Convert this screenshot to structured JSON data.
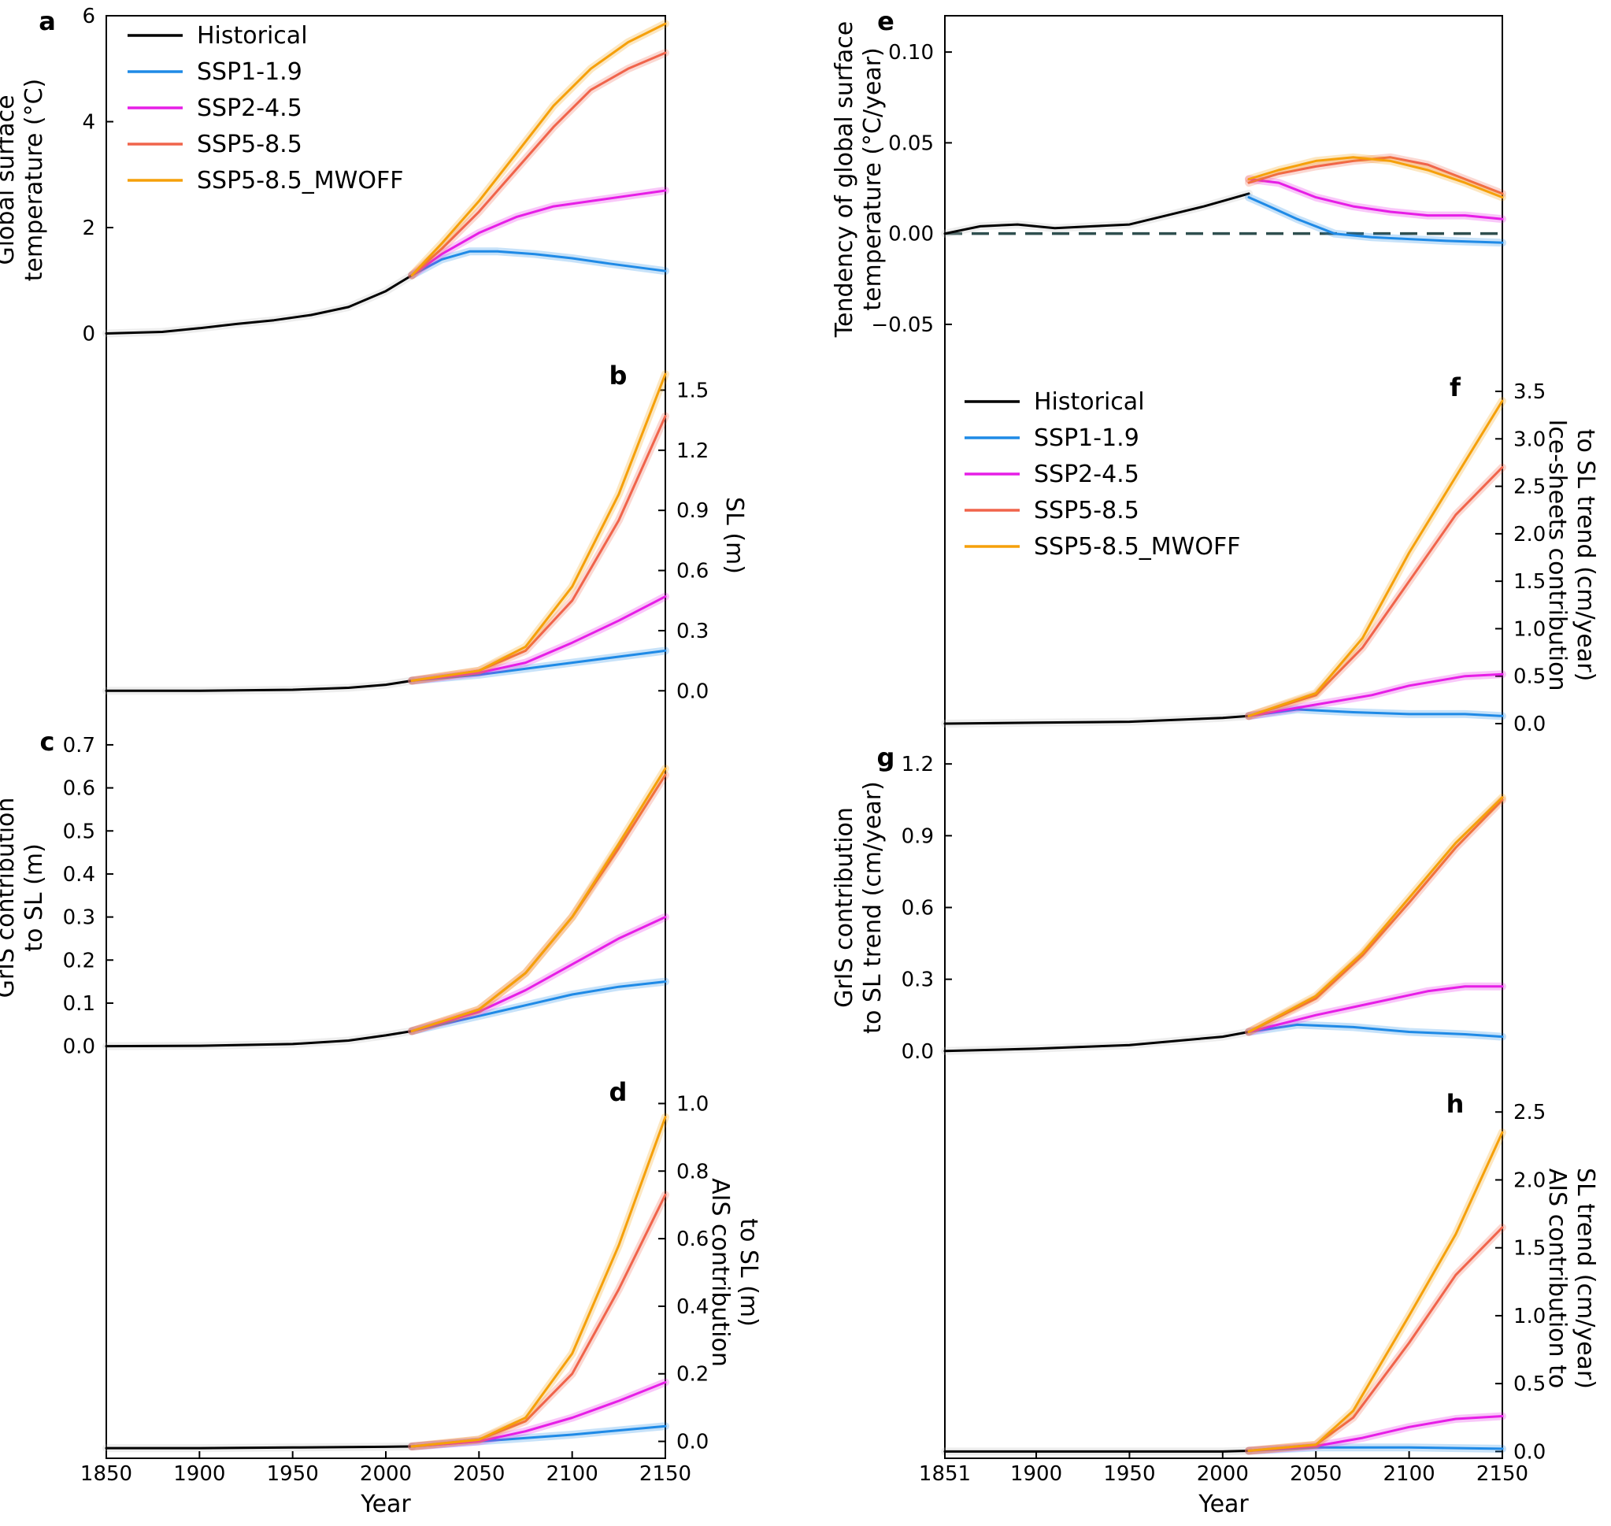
{
  "legend": [
    {
      "label": "Historical",
      "color": "#000000"
    },
    {
      "label": "SSP1-1.9",
      "color": "#1f8ae6"
    },
    {
      "label": "SSP2-4.5",
      "color": "#e61ee6"
    },
    {
      "label": "SSP5-8.5",
      "color": "#f0644b"
    },
    {
      "label": "SSP5-8.5_MWOFF",
      "color": "#f5a00a"
    }
  ],
  "colors": {
    "zero_line": "#2f4f4f",
    "spread": "#bbbbbb"
  },
  "x_axis": {
    "left": {
      "label": "Year",
      "ticks": [
        "1850",
        "1900",
        "1950",
        "2000",
        "2050",
        "2100",
        "2150"
      ],
      "range": [
        1850,
        2150
      ]
    },
    "right": {
      "label": "Year",
      "ticks": [
        "1851",
        "1900",
        "1950",
        "2000",
        "2050",
        "2100",
        "2150"
      ],
      "range": [
        1851,
        2150
      ]
    }
  },
  "chart_data": [
    {
      "id": "a",
      "panel_label": "a",
      "type": "line",
      "side": "left",
      "axis": "left",
      "ylabel": [
        "Global surface",
        "temperature (°C)"
      ],
      "yticks": [
        "0",
        "2",
        "4",
        "6"
      ],
      "ylim": [
        -0.2,
        6.0
      ],
      "hist_end": 2014,
      "series": [
        {
          "name": "Historical",
          "x": [
            1850,
            1880,
            1900,
            1920,
            1940,
            1960,
            1980,
            2000,
            2014
          ],
          "values": [
            0.0,
            0.03,
            0.1,
            0.18,
            0.25,
            0.35,
            0.5,
            0.8,
            1.1
          ]
        },
        {
          "name": "SSP1-1.9",
          "x": [
            2014,
            2030,
            2045,
            2060,
            2080,
            2100,
            2120,
            2150
          ],
          "values": [
            1.1,
            1.4,
            1.55,
            1.55,
            1.5,
            1.42,
            1.32,
            1.18
          ]
        },
        {
          "name": "SSP2-4.5",
          "x": [
            2014,
            2030,
            2050,
            2070,
            2090,
            2110,
            2130,
            2150
          ],
          "values": [
            1.1,
            1.5,
            1.9,
            2.2,
            2.4,
            2.5,
            2.6,
            2.7
          ]
        },
        {
          "name": "SSP5-8.5",
          "x": [
            2014,
            2030,
            2050,
            2070,
            2090,
            2110,
            2130,
            2150
          ],
          "values": [
            1.1,
            1.6,
            2.3,
            3.1,
            3.9,
            4.6,
            5.0,
            5.3
          ]
        },
        {
          "name": "SSP5-8.5_MWOFF",
          "x": [
            2014,
            2030,
            2050,
            2070,
            2090,
            2110,
            2130,
            2150
          ],
          "values": [
            1.1,
            1.7,
            2.5,
            3.4,
            4.3,
            5.0,
            5.5,
            5.85
          ]
        }
      ]
    },
    {
      "id": "b",
      "panel_label": "b",
      "type": "line",
      "side": "right",
      "axis": "left",
      "ylabel": [
        "SL (m)"
      ],
      "yticks": [
        "0.0",
        "0.3",
        "0.6",
        "0.9",
        "1.2",
        "1.5"
      ],
      "ylim": [
        -0.05,
        1.6
      ],
      "hist_end": 2014,
      "series": [
        {
          "name": "Historical",
          "x": [
            1850,
            1900,
            1950,
            1980,
            2000,
            2014
          ],
          "values": [
            0.0,
            0.0,
            0.005,
            0.015,
            0.03,
            0.05
          ]
        },
        {
          "name": "SSP1-1.9",
          "x": [
            2014,
            2050,
            2075,
            2100,
            2125,
            2150
          ],
          "values": [
            0.05,
            0.08,
            0.11,
            0.14,
            0.17,
            0.2
          ]
        },
        {
          "name": "SSP2-4.5",
          "x": [
            2014,
            2050,
            2075,
            2100,
            2125,
            2150
          ],
          "values": [
            0.05,
            0.09,
            0.14,
            0.24,
            0.35,
            0.47
          ]
        },
        {
          "name": "SSP5-8.5",
          "x": [
            2014,
            2050,
            2075,
            2100,
            2125,
            2150
          ],
          "values": [
            0.05,
            0.1,
            0.2,
            0.45,
            0.85,
            1.37
          ]
        },
        {
          "name": "SSP5-8.5_MWOFF",
          "x": [
            2014,
            2050,
            2075,
            2100,
            2125,
            2150
          ],
          "values": [
            0.05,
            0.1,
            0.22,
            0.52,
            0.98,
            1.58
          ]
        }
      ]
    },
    {
      "id": "c",
      "panel_label": "c",
      "type": "line",
      "side": "left",
      "axis": "left",
      "ylabel": [
        "GrIS contribution",
        "to SL (m)"
      ],
      "yticks": [
        "0.0",
        "0.1",
        "0.2",
        "0.3",
        "0.4",
        "0.5",
        "0.6",
        "0.7"
      ],
      "ylim": [
        -0.03,
        0.72
      ],
      "hist_end": 2014,
      "series": [
        {
          "name": "Historical",
          "x": [
            1850,
            1900,
            1950,
            1980,
            2000,
            2014
          ],
          "values": [
            0.0,
            0.001,
            0.005,
            0.013,
            0.025,
            0.035
          ]
        },
        {
          "name": "SSP1-1.9",
          "x": [
            2014,
            2050,
            2075,
            2100,
            2125,
            2150
          ],
          "values": [
            0.035,
            0.07,
            0.095,
            0.12,
            0.138,
            0.15
          ]
        },
        {
          "name": "SSP2-4.5",
          "x": [
            2014,
            2050,
            2075,
            2100,
            2125,
            2150
          ],
          "values": [
            0.035,
            0.08,
            0.13,
            0.19,
            0.25,
            0.3
          ]
        },
        {
          "name": "SSP5-8.5",
          "x": [
            2014,
            2050,
            2075,
            2100,
            2125,
            2150
          ],
          "values": [
            0.035,
            0.085,
            0.17,
            0.3,
            0.46,
            0.63
          ]
        },
        {
          "name": "SSP5-8.5_MWOFF",
          "x": [
            2014,
            2050,
            2075,
            2100,
            2125,
            2150
          ],
          "values": [
            0.035,
            0.085,
            0.17,
            0.3,
            0.47,
            0.645
          ]
        }
      ]
    },
    {
      "id": "d",
      "panel_label": "d",
      "type": "line",
      "side": "right",
      "axis": "left",
      "ylabel": [
        "AIS contribution",
        "to SL (m)"
      ],
      "yticks": [
        "0.0",
        "0.2",
        "0.4",
        "0.6",
        "0.8",
        "1.0"
      ],
      "ylim": [
        -0.05,
        1.05
      ],
      "hist_end": 2014,
      "series": [
        {
          "name": "Historical",
          "x": [
            1850,
            1900,
            1950,
            2000,
            2014
          ],
          "values": [
            -0.02,
            -0.02,
            -0.018,
            -0.016,
            -0.015
          ]
        },
        {
          "name": "SSP1-1.9",
          "x": [
            2014,
            2050,
            2100,
            2150
          ],
          "values": [
            -0.015,
            0.0,
            0.02,
            0.045
          ]
        },
        {
          "name": "SSP2-4.5",
          "x": [
            2014,
            2050,
            2075,
            2100,
            2125,
            2150
          ],
          "values": [
            -0.015,
            0.0,
            0.03,
            0.07,
            0.12,
            0.175
          ]
        },
        {
          "name": "SSP5-8.5",
          "x": [
            2014,
            2050,
            2075,
            2100,
            2125,
            2150
          ],
          "values": [
            -0.015,
            0.005,
            0.06,
            0.2,
            0.45,
            0.73
          ]
        },
        {
          "name": "SSP5-8.5_MWOFF",
          "x": [
            2014,
            2050,
            2075,
            2100,
            2125,
            2150
          ],
          "values": [
            -0.015,
            0.005,
            0.07,
            0.26,
            0.58,
            0.96
          ]
        }
      ]
    },
    {
      "id": "e",
      "panel_label": "e",
      "type": "line",
      "side": "left",
      "axis": "right",
      "ylabel": [
        "Tendency of global surface",
        "temperature (°C/year)"
      ],
      "yticks": [
        "−0.05",
        "0.00",
        "0.05",
        "0.10"
      ],
      "ylim": [
        -0.06,
        0.12
      ],
      "hist_end": 2014,
      "zero_line": true,
      "series": [
        {
          "name": "Historical",
          "x": [
            1851,
            1870,
            1890,
            1910,
            1930,
            1950,
            1970,
            1990,
            2014
          ],
          "values": [
            0.0,
            0.004,
            0.005,
            0.003,
            0.004,
            0.005,
            0.01,
            0.015,
            0.022
          ]
        },
        {
          "name": "SSP1-1.9",
          "x": [
            2014,
            2025,
            2040,
            2060,
            2080,
            2100,
            2120,
            2150
          ],
          "values": [
            0.02,
            0.015,
            0.008,
            0.0,
            -0.002,
            -0.003,
            -0.004,
            -0.005
          ]
        },
        {
          "name": "SSP2-4.5",
          "x": [
            2014,
            2030,
            2050,
            2070,
            2090,
            2110,
            2130,
            2150
          ],
          "values": [
            0.03,
            0.028,
            0.02,
            0.015,
            0.012,
            0.01,
            0.01,
            0.008
          ]
        },
        {
          "name": "SSP5-8.5",
          "x": [
            2014,
            2030,
            2050,
            2070,
            2090,
            2110,
            2130,
            2150
          ],
          "values": [
            0.028,
            0.033,
            0.037,
            0.04,
            0.042,
            0.038,
            0.03,
            0.022
          ]
        },
        {
          "name": "SSP5-8.5_MWOFF",
          "x": [
            2014,
            2030,
            2050,
            2070,
            2090,
            2110,
            2130,
            2150
          ],
          "values": [
            0.03,
            0.035,
            0.04,
            0.042,
            0.04,
            0.035,
            0.028,
            0.02
          ]
        }
      ]
    },
    {
      "id": "f",
      "panel_label": "f",
      "type": "line",
      "side": "right",
      "axis": "right",
      "ylabel": [
        "Ice-sheets contribution",
        "to SL trend (cm/year)"
      ],
      "yticks": [
        "0.0",
        "0.5",
        "1.0",
        "1.5",
        "2.0",
        "2.5",
        "3.0",
        "3.5"
      ],
      "ylim": [
        -0.05,
        3.6
      ],
      "hist_end": 2014,
      "series": [
        {
          "name": "Historical",
          "x": [
            1851,
            1900,
            1950,
            2000,
            2014
          ],
          "values": [
            0.0,
            0.01,
            0.02,
            0.06,
            0.08
          ]
        },
        {
          "name": "SSP1-1.9",
          "x": [
            2014,
            2040,
            2070,
            2100,
            2130,
            2150
          ],
          "values": [
            0.08,
            0.15,
            0.12,
            0.1,
            0.1,
            0.08
          ]
        },
        {
          "name": "SSP2-4.5",
          "x": [
            2014,
            2050,
            2080,
            2100,
            2130,
            2150
          ],
          "values": [
            0.08,
            0.2,
            0.3,
            0.4,
            0.5,
            0.52
          ]
        },
        {
          "name": "SSP5-8.5",
          "x": [
            2014,
            2050,
            2075,
            2100,
            2125,
            2150
          ],
          "values": [
            0.08,
            0.3,
            0.8,
            1.5,
            2.2,
            2.7
          ]
        },
        {
          "name": "SSP5-8.5_MWOFF",
          "x": [
            2014,
            2050,
            2075,
            2100,
            2125,
            2150
          ],
          "values": [
            0.08,
            0.32,
            0.9,
            1.8,
            2.6,
            3.4
          ]
        }
      ]
    },
    {
      "id": "g",
      "panel_label": "g",
      "type": "line",
      "side": "left",
      "axis": "right",
      "ylabel": [
        "GrIS contribution",
        "to SL trend (cm/year)"
      ],
      "yticks": [
        "0.0",
        "0.3",
        "0.6",
        "0.9",
        "1.2"
      ],
      "ylim": [
        -0.05,
        1.25
      ],
      "hist_end": 2014,
      "series": [
        {
          "name": "Historical",
          "x": [
            1851,
            1900,
            1950,
            2000,
            2014
          ],
          "values": [
            0.0,
            0.01,
            0.025,
            0.06,
            0.08
          ]
        },
        {
          "name": "SSP1-1.9",
          "x": [
            2014,
            2040,
            2070,
            2100,
            2130,
            2150
          ],
          "values": [
            0.08,
            0.11,
            0.1,
            0.08,
            0.07,
            0.06
          ]
        },
        {
          "name": "SSP2-4.5",
          "x": [
            2014,
            2050,
            2080,
            2110,
            2130,
            2150
          ],
          "values": [
            0.08,
            0.15,
            0.2,
            0.25,
            0.27,
            0.27
          ]
        },
        {
          "name": "SSP5-8.5",
          "x": [
            2014,
            2050,
            2075,
            2100,
            2125,
            2150
          ],
          "values": [
            0.08,
            0.22,
            0.4,
            0.62,
            0.85,
            1.05
          ]
        },
        {
          "name": "SSP5-8.5_MWOFF",
          "x": [
            2014,
            2050,
            2075,
            2100,
            2125,
            2150
          ],
          "values": [
            0.08,
            0.23,
            0.41,
            0.64,
            0.87,
            1.06
          ]
        }
      ]
    },
    {
      "id": "h",
      "panel_label": "h",
      "type": "line",
      "side": "right",
      "axis": "right",
      "ylabel": [
        "AIS contribution to",
        "SL trend (cm/year)"
      ],
      "yticks": [
        "0.0",
        "0.5",
        "1.0",
        "1.5",
        "2.0",
        "2.5"
      ],
      "ylim": [
        -0.05,
        2.6
      ],
      "hist_end": 2014,
      "series": [
        {
          "name": "Historical",
          "x": [
            1851,
            1900,
            1950,
            2000,
            2014
          ],
          "values": [
            0.0,
            0.0,
            0.0,
            0.0,
            0.005
          ]
        },
        {
          "name": "SSP1-1.9",
          "x": [
            2014,
            2050,
            2100,
            2150
          ],
          "values": [
            0.005,
            0.03,
            0.03,
            0.02
          ]
        },
        {
          "name": "SSP2-4.5",
          "x": [
            2014,
            2050,
            2075,
            2100,
            2125,
            2150
          ],
          "values": [
            0.005,
            0.04,
            0.1,
            0.18,
            0.24,
            0.26
          ]
        },
        {
          "name": "SSP5-8.5",
          "x": [
            2014,
            2050,
            2070,
            2100,
            2125,
            2150
          ],
          "values": [
            0.005,
            0.05,
            0.25,
            0.8,
            1.3,
            1.65
          ]
        },
        {
          "name": "SSP5-8.5_MWOFF",
          "x": [
            2014,
            2050,
            2070,
            2100,
            2125,
            2150
          ],
          "values": [
            0.005,
            0.05,
            0.3,
            1.0,
            1.6,
            2.35
          ]
        }
      ]
    }
  ]
}
